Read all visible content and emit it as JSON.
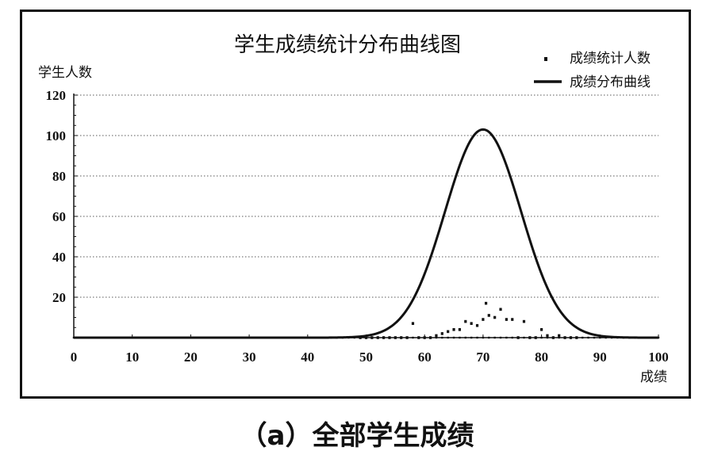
{
  "caption": "（a）全部学生成绩",
  "chart_data": {
    "type": "scatter+line",
    "title": "学生成绩统计分布曲线图",
    "xlabel": "成绩",
    "ylabel": "学生人数",
    "xlim": [
      0,
      100
    ],
    "ylim": [
      0,
      120
    ],
    "xticks": [
      "0",
      "10",
      "20",
      "30",
      "40",
      "50",
      "60",
      "70",
      "80",
      "90",
      "100"
    ],
    "yticks": [
      "20",
      "40",
      "60",
      "80",
      "100",
      "120"
    ],
    "grid": true,
    "legend_position": "top-right",
    "series": [
      {
        "name": "成绩统计人数",
        "kind": "scatter",
        "points": [
          [
            49,
            0
          ],
          [
            50,
            0
          ],
          [
            51,
            0
          ],
          [
            52,
            0
          ],
          [
            53,
            0
          ],
          [
            54,
            0
          ],
          [
            55,
            0
          ],
          [
            56,
            0
          ],
          [
            57,
            0
          ],
          [
            58,
            7
          ],
          [
            59,
            0
          ],
          [
            60,
            0
          ],
          [
            61,
            0
          ],
          [
            62,
            1
          ],
          [
            63,
            2
          ],
          [
            64,
            3
          ],
          [
            65,
            4
          ],
          [
            66,
            4
          ],
          [
            67,
            8
          ],
          [
            68,
            7
          ],
          [
            69,
            6
          ],
          [
            70,
            9
          ],
          [
            70.5,
            17
          ],
          [
            71,
            11
          ],
          [
            72,
            10
          ],
          [
            73,
            14
          ],
          [
            74,
            9
          ],
          [
            75,
            9
          ],
          [
            76,
            0
          ],
          [
            77,
            8
          ],
          [
            78,
            0
          ],
          [
            79,
            0
          ],
          [
            80,
            4
          ],
          [
            81,
            1
          ],
          [
            82,
            0
          ],
          [
            83,
            1
          ],
          [
            84,
            0
          ],
          [
            85,
            0
          ],
          [
            86,
            0
          ]
        ]
      },
      {
        "name": "成绩分布曲线",
        "kind": "line",
        "mean": 70,
        "sd": 6.5,
        "peak": 103
      }
    ],
    "dotted_baseline": {
      "from": 0,
      "to": 100,
      "step": 1,
      "value": 0
    }
  }
}
